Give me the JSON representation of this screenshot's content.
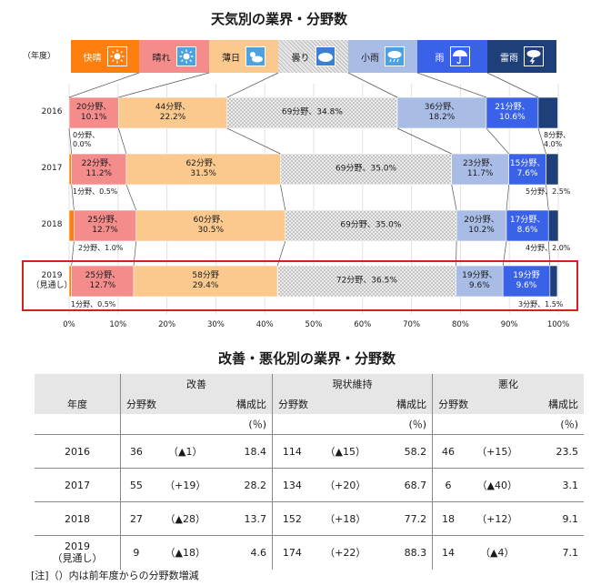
{
  "chart1": {
    "title": "天気別の業界・分野数",
    "year_header": "（年度）",
    "legend": [
      {
        "label": "快晴",
        "color": "#ff7f0e",
        "icon": "sun-icon"
      },
      {
        "label": "晴れ",
        "color": "#f48c8c",
        "icon": "sun-icon"
      },
      {
        "label": "薄日",
        "color": "#fbc98e",
        "icon": "sun-cloud-icon"
      },
      {
        "label": "曇り",
        "color": "#d0d0d0",
        "icon": "cloud-icon"
      },
      {
        "label": "小雨",
        "color": "#a9bce6",
        "icon": "light-rain-icon"
      },
      {
        "label": "雨",
        "color": "#3a62e8",
        "icon": "umbrella-icon"
      },
      {
        "label": "雷雨",
        "color": "#1f3f7a",
        "icon": "thunderstorm-icon"
      }
    ],
    "x_ticks": [
      "0%",
      "10%",
      "20%",
      "30%",
      "40%",
      "50%",
      "60%",
      "70%",
      "80%",
      "90%",
      "100%"
    ],
    "rows": [
      {
        "year": "2016",
        "highlight": false,
        "segments": [
          {
            "pct": 0.0,
            "label": ""
          },
          {
            "pct": 10.1,
            "label": "20分野、\n10.1%"
          },
          {
            "pct": 22.2,
            "label": "44分野、\n22.2%"
          },
          {
            "pct": 34.8,
            "label": "69分野、34.8%"
          },
          {
            "pct": 18.2,
            "label": "36分野、\n18.2%"
          },
          {
            "pct": 10.6,
            "label": "21分野、\n10.6%"
          },
          {
            "pct": 4.0,
            "label": ""
          }
        ],
        "note_left": "0分野、\n0.0%",
        "note_right": "8分野、\n4.0%"
      },
      {
        "year": "2017",
        "highlight": false,
        "segments": [
          {
            "pct": 0.5,
            "label": ""
          },
          {
            "pct": 11.2,
            "label": "22分野、\n11.2%"
          },
          {
            "pct": 31.5,
            "label": "62分野、\n31.5%"
          },
          {
            "pct": 35.0,
            "label": "69分野、35.0%"
          },
          {
            "pct": 11.7,
            "label": "23分野、\n11.7%"
          },
          {
            "pct": 7.6,
            "label": "15分野、\n7.6%"
          },
          {
            "pct": 2.5,
            "label": ""
          }
        ],
        "note_left": "1分野、0.5%",
        "note_right": "5分野、2.5%"
      },
      {
        "year": "2018",
        "highlight": false,
        "segments": [
          {
            "pct": 1.0,
            "label": ""
          },
          {
            "pct": 12.7,
            "label": "25分野、\n12.7%"
          },
          {
            "pct": 30.5,
            "label": "60分野、\n30.5%"
          },
          {
            "pct": 35.0,
            "label": "69分野、35.0%"
          },
          {
            "pct": 10.2,
            "label": "20分野、\n10.2%"
          },
          {
            "pct": 8.6,
            "label": "17分野、\n8.6%"
          },
          {
            "pct": 2.0,
            "label": ""
          }
        ],
        "note_left": "2分野、1.0%",
        "note_right": "4分野、2.0%"
      },
      {
        "year": "2019\n（見通し）",
        "highlight": true,
        "segments": [
          {
            "pct": 0.5,
            "label": ""
          },
          {
            "pct": 12.7,
            "label": "25分野、\n12.7%"
          },
          {
            "pct": 29.4,
            "label": "58分野\n29.4%"
          },
          {
            "pct": 36.5,
            "label": "72分野、36.5%"
          },
          {
            "pct": 9.6,
            "label": "19分野、\n9.6%"
          },
          {
            "pct": 9.6,
            "label": "19分野\n9.6%"
          },
          {
            "pct": 1.5,
            "label": ""
          }
        ],
        "note_left": "1分野、0.5%",
        "note_right": "3分野、1.5%"
      }
    ]
  },
  "chart_data": {
    "type": "bar",
    "stacked": true,
    "orientation": "horizontal",
    "title": "天気別の業界・分野数",
    "categories": [
      "2016",
      "2017",
      "2018",
      "2019（見通し）"
    ],
    "xlim": [
      0,
      100
    ],
    "series": [
      {
        "name": "快晴",
        "values": [
          0.0,
          0.5,
          1.0,
          0.5
        ],
        "counts": [
          0,
          1,
          2,
          1
        ]
      },
      {
        "name": "晴れ",
        "values": [
          10.1,
          11.2,
          12.7,
          12.7
        ],
        "counts": [
          20,
          22,
          25,
          25
        ]
      },
      {
        "name": "薄日",
        "values": [
          22.2,
          31.5,
          30.5,
          29.4
        ],
        "counts": [
          44,
          62,
          60,
          58
        ]
      },
      {
        "name": "曇り",
        "values": [
          34.8,
          35.0,
          35.0,
          36.5
        ],
        "counts": [
          69,
          69,
          69,
          72
        ]
      },
      {
        "name": "小雨",
        "values": [
          18.2,
          11.7,
          10.2,
          9.6
        ],
        "counts": [
          36,
          23,
          20,
          19
        ]
      },
      {
        "name": "雨",
        "values": [
          10.6,
          7.6,
          8.6,
          9.6
        ],
        "counts": [
          21,
          15,
          17,
          19
        ]
      },
      {
        "name": "雷雨",
        "values": [
          4.0,
          2.5,
          2.0,
          1.5
        ],
        "counts": [
          8,
          5,
          4,
          3
        ]
      }
    ]
  },
  "table": {
    "title": "改善・悪化別の業界・分野数",
    "group_headers": [
      "改善",
      "現状維持",
      "悪化"
    ],
    "year_header": "年度",
    "sub_headers": [
      "分野数",
      "構成比",
      "分野数",
      "構成比",
      "分野数",
      "構成比"
    ],
    "unit": "(％)",
    "rows": [
      {
        "year": "2016",
        "cells": [
          "36",
          "（▲1）",
          "18.4",
          "114",
          "（▲15）",
          "58.2",
          "46",
          "（+15）",
          "23.5"
        ]
      },
      {
        "year": "2017",
        "cells": [
          "55",
          "（+19）",
          "28.2",
          "134",
          "（+20）",
          "68.7",
          "6",
          "（▲40）",
          "3.1"
        ]
      },
      {
        "year": "2018",
        "cells": [
          "27",
          "（▲28）",
          "13.7",
          "152",
          "（+18）",
          "77.2",
          "18",
          "（+12）",
          "9.1"
        ]
      },
      {
        "year": "2019\n（見通し）",
        "cells": [
          "9",
          "（▲18）",
          "4.6",
          "174",
          "（+22）",
          "88.3",
          "14",
          "（▲4）",
          "7.1"
        ]
      }
    ],
    "note": "[注]（）内は前年度からの分野数増減"
  }
}
